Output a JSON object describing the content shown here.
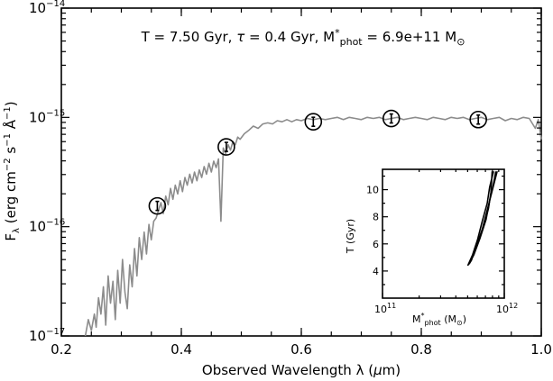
{
  "chart_data": [
    {
      "type": "line",
      "annotation": "T = 7.50 Gyr, τ = 0.4 Gyr, M*phot = 6.9e+11 M⊙",
      "annotation_parts": {
        "pre": "T = 7.50 Gyr, ",
        "tau": "τ",
        "mid": " = 0.4 Gyr, M",
        "star": "*",
        "sub": "phot",
        "post": " = 6.9e+11 M",
        "sun": "⊙"
      },
      "xlabel_parts": {
        "pre": "Observed Wavelength λ (",
        "mu": "μ",
        "post": "m)"
      },
      "ylabel_parts": {
        "F": "F",
        "lam": "λ",
        "unit_pre": " (erg cm",
        "e1": "−2",
        "mid1": " s",
        "e2": "−1",
        "mid2": " Å",
        "e3": "−1",
        "close": ")"
      },
      "x_scale": "linear",
      "y_scale": "log",
      "xlim": [
        0.2,
        1.0
      ],
      "ylim": [
        1e-17,
        1e-14
      ],
      "x_ticks": [
        {
          "value": 0.2,
          "label": "0.2"
        },
        {
          "value": 0.4,
          "label": "0.4"
        },
        {
          "value": 0.6,
          "label": "0.6"
        },
        {
          "value": 0.8,
          "label": "0.8"
        },
        {
          "value": 1.0,
          "label": "1.0"
        }
      ],
      "y_ticks": [
        {
          "value": -17,
          "base": "10",
          "exp": "−17"
        },
        {
          "value": -16,
          "base": "10",
          "exp": "−16"
        },
        {
          "value": -15,
          "base": "10",
          "exp": "−15"
        },
        {
          "value": -14,
          "base": "10",
          "exp": "−14"
        }
      ],
      "series": [
        {
          "kind": "model_spectrum",
          "color": "#8c8c8c",
          "x": [
            0.24,
            0.245,
            0.25,
            0.255,
            0.258,
            0.262,
            0.266,
            0.27,
            0.274,
            0.278,
            0.282,
            0.286,
            0.29,
            0.294,
            0.298,
            0.302,
            0.306,
            0.31,
            0.314,
            0.318,
            0.322,
            0.326,
            0.33,
            0.334,
            0.338,
            0.342,
            0.346,
            0.35,
            0.354,
            0.358,
            0.362,
            0.366,
            0.37,
            0.374,
            0.378,
            0.382,
            0.386,
            0.39,
            0.394,
            0.398,
            0.402,
            0.406,
            0.41,
            0.414,
            0.418,
            0.422,
            0.426,
            0.43,
            0.434,
            0.438,
            0.442,
            0.446,
            0.45,
            0.454,
            0.458,
            0.462,
            0.466,
            0.47,
            0.474,
            0.478,
            0.482,
            0.486,
            0.49,
            0.494,
            0.498,
            0.505,
            0.512,
            0.52,
            0.528,
            0.536,
            0.544,
            0.552,
            0.56,
            0.568,
            0.576,
            0.584,
            0.592,
            0.6,
            0.61,
            0.62,
            0.63,
            0.64,
            0.65,
            0.66,
            0.67,
            0.68,
            0.69,
            0.7,
            0.71,
            0.72,
            0.73,
            0.74,
            0.75,
            0.76,
            0.77,
            0.78,
            0.79,
            0.8,
            0.81,
            0.82,
            0.83,
            0.84,
            0.85,
            0.86,
            0.87,
            0.88,
            0.89,
            0.9,
            0.91,
            0.92,
            0.93,
            0.94,
            0.95,
            0.96,
            0.97,
            0.98,
            0.99,
            0.995,
            1.0
          ],
          "y_log": [
            -17.0,
            -16.85,
            -16.95,
            -16.8,
            -16.92,
            -16.65,
            -16.8,
            -16.55,
            -16.9,
            -16.45,
            -16.7,
            -16.5,
            -16.85,
            -16.4,
            -16.7,
            -16.3,
            -16.6,
            -16.75,
            -16.35,
            -16.55,
            -16.2,
            -16.45,
            -16.1,
            -16.3,
            -16.05,
            -16.25,
            -15.98,
            -16.12,
            -15.95,
            -15.92,
            -15.85,
            -15.78,
            -15.88,
            -15.72,
            -15.8,
            -15.65,
            -15.75,
            -15.62,
            -15.7,
            -15.58,
            -15.68,
            -15.55,
            -15.62,
            -15.52,
            -15.6,
            -15.5,
            -15.58,
            -15.48,
            -15.55,
            -15.45,
            -15.52,
            -15.42,
            -15.5,
            -15.4,
            -15.46,
            -15.38,
            -15.95,
            -15.28,
            -15.33,
            -15.25,
            -15.3,
            -15.22,
            -15.25,
            -15.18,
            -15.2,
            -15.15,
            -15.12,
            -15.08,
            -15.1,
            -15.06,
            -15.05,
            -15.06,
            -15.03,
            -15.04,
            -15.02,
            -15.04,
            -15.02,
            -15.03,
            -15.01,
            -15.02,
            -15.01,
            -15.02,
            -15.01,
            -15.0,
            -15.02,
            -15.0,
            -15.01,
            -15.02,
            -15.0,
            -15.01,
            -15.0,
            -15.02,
            -15.01,
            -15.0,
            -15.02,
            -15.01,
            -15.0,
            -15.01,
            -15.02,
            -15.0,
            -15.01,
            -15.02,
            -15.0,
            -15.01,
            -15.0,
            -15.02,
            -15.01,
            -15.0,
            -15.02,
            -15.01,
            -15.0,
            -15.03,
            -15.01,
            -15.02,
            -15.0,
            -15.01,
            -15.1,
            -15.02,
            -15.2
          ]
        },
        {
          "kind": "photometry",
          "points": [
            {
              "x": 0.36,
              "y_log": -15.81
            },
            {
              "x": 0.475,
              "y_log": -15.27
            },
            {
              "x": 0.62,
              "y_log": -15.04
            },
            {
              "x": 0.75,
              "y_log": -15.01
            },
            {
              "x": 0.895,
              "y_log": -15.02
            }
          ]
        }
      ]
    },
    {
      "type": "scatter",
      "role": "inset",
      "xlabel_parts": {
        "M": "M",
        "star": "*",
        "sub": "phot",
        "unit": " (M",
        "sun": "⊙",
        "close": ")"
      },
      "ylabel": "T (Gyr)",
      "x_scale": "log",
      "xlim": [
        100000000000.0,
        1000000000000.0
      ],
      "ylim": [
        2.0,
        11.5
      ],
      "x_ticks": [
        {
          "value": 11,
          "base": "10",
          "exp": "11"
        },
        {
          "value": 12,
          "base": "10",
          "exp": "12"
        }
      ],
      "y_ticks": [
        {
          "value": 4,
          "label": "4"
        },
        {
          "value": 6,
          "label": "6"
        },
        {
          "value": 8,
          "label": "8"
        },
        {
          "value": 10,
          "label": "10"
        }
      ],
      "contours": [
        {
          "x_log": [
            11.7,
            11.73,
            11.78,
            11.83,
            11.87,
            11.89,
            11.9,
            11.91,
            11.88,
            11.86,
            11.82,
            11.78,
            11.74,
            11.7
          ],
          "y": [
            4.4,
            4.9,
            6.0,
            7.3,
            8.6,
            9.8,
            11.3,
            11.3,
            10.2,
            9.0,
            7.7,
            6.3,
            5.2,
            4.4
          ]
        },
        {
          "x_log": [
            11.71,
            11.75,
            11.8,
            11.85,
            11.88,
            11.92,
            11.94,
            11.93,
            11.9,
            11.86,
            11.82,
            11.77,
            11.73,
            11.71
          ],
          "y": [
            4.5,
            5.2,
            6.4,
            7.8,
            9.2,
            10.6,
            11.3,
            11.3,
            9.9,
            8.5,
            7.1,
            5.8,
            4.8,
            4.5
          ]
        }
      ]
    }
  ]
}
